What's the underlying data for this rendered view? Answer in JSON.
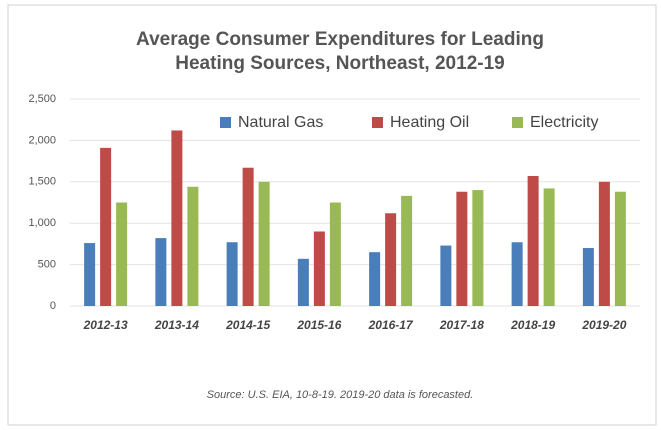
{
  "chart_data": {
    "type": "bar",
    "title": [
      "Average Consumer Expenditures for Leading",
      "Heating Sources, Northeast, 2012-19"
    ],
    "source": "Source: U.S. EIA, 10-8-19.  2019-20  data is forecasted.",
    "categories": [
      "2012-13",
      "2013-14",
      "2014-15",
      "2015-16",
      "2016-17",
      "2017-18",
      "2018-19",
      "2019-20"
    ],
    "series": [
      {
        "name": "Natural Gas",
        "color": "#4a7ebb",
        "values": [
          760,
          820,
          770,
          570,
          650,
          730,
          770,
          700
        ]
      },
      {
        "name": "Heating Oil",
        "color": "#be4b48",
        "values": [
          1910,
          2120,
          1670,
          900,
          1120,
          1380,
          1570,
          1500
        ]
      },
      {
        "name": "Electricity",
        "color": "#98b954",
        "values": [
          1250,
          1440,
          1500,
          1250,
          1330,
          1400,
          1420,
          1380
        ]
      }
    ],
    "ylim": [
      0,
      2500
    ],
    "yticks": [
      0,
      500,
      {
        "value": 1000,
        "label": "1,000"
      },
      {
        "value": 1500,
        "label": "1,500"
      },
      {
        "value": 2000,
        "label": "2,000"
      },
      {
        "value": 2500,
        "label": "2,500"
      }
    ],
    "grid": true,
    "legend": "top"
  }
}
